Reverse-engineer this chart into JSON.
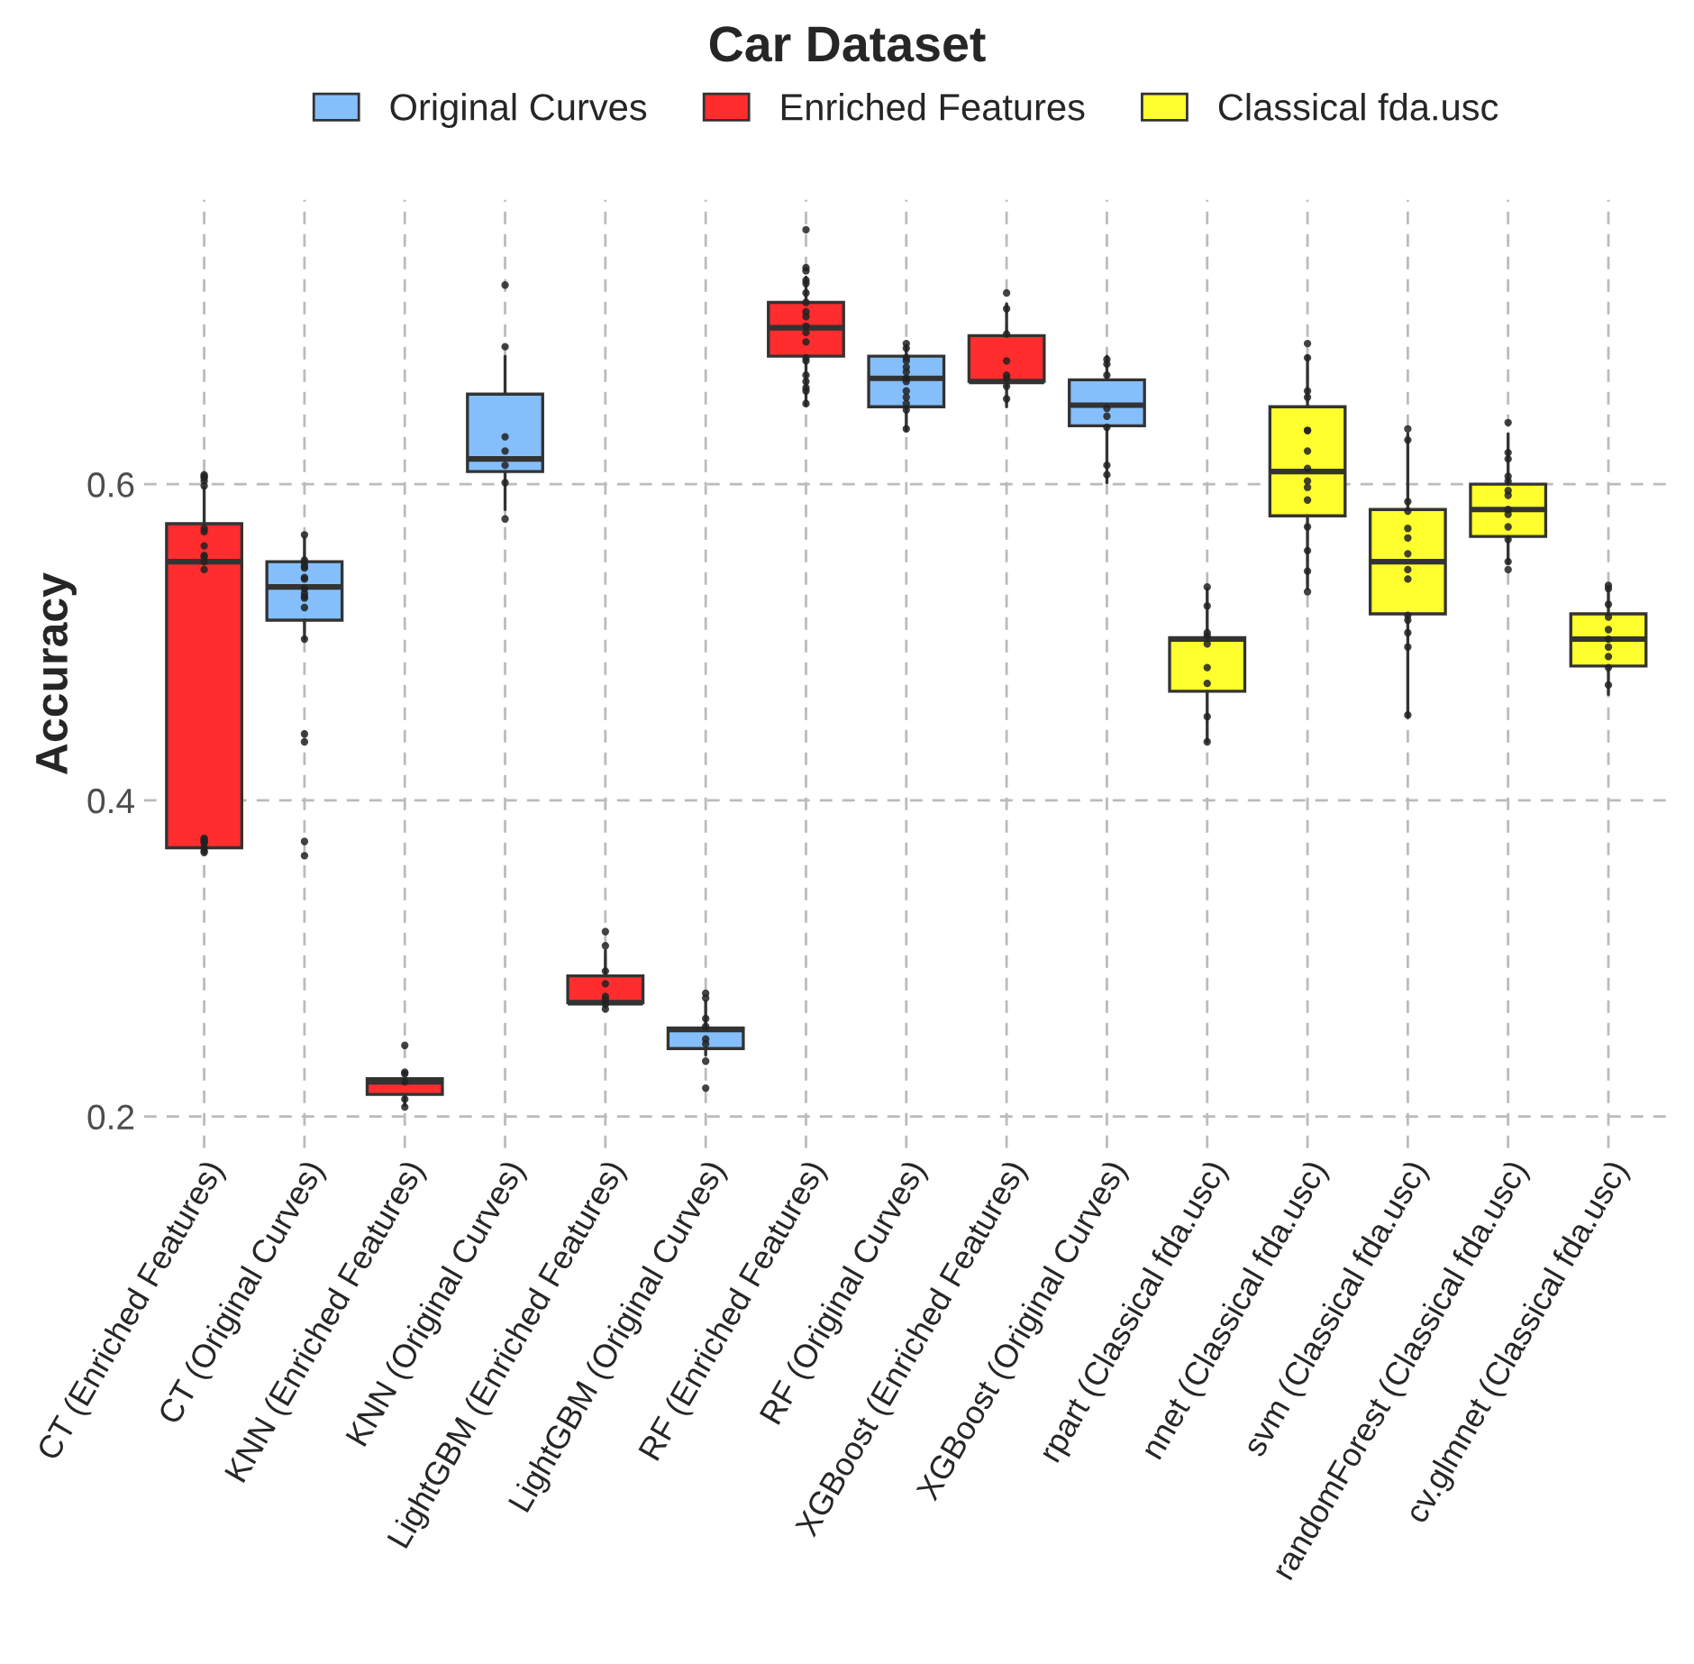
{
  "chart_data": {
    "type": "box",
    "title": "Car Dataset",
    "ylabel": "Accuracy",
    "categories": [
      "CT (Enriched Features)",
      "CT (Original Curves)",
      "KNN (Enriched Features)",
      "KNN (Original Curves)",
      "LightGBM (Enriched Features)",
      "LightGBM (Original Curves)",
      "RF (Enriched Features)",
      "RF (Original Curves)",
      "XGBoost (Enriched Features)",
      "XGBoost (Original Curves)",
      "rpart (Classical fda.usc)",
      "nnet (Classical fda.usc)",
      "svm (Classical fda.usc)",
      "randomForest (Classical fda.usc)",
      "cv.glmnet (Classical fda.usc)"
    ],
    "ylim": [
      0.18,
      0.78
    ],
    "yticks": [
      0.2,
      0.4,
      0.6
    ],
    "grid": true,
    "legend": "top",
    "series": [
      {
        "name": "Original Curves",
        "color": "#85bffb",
        "boxes": [
          null,
          {
            "low": 0.502,
            "q1": 0.514,
            "median": 0.535,
            "q3": 0.551,
            "high": 0.566
          },
          null,
          {
            "low": 0.584,
            "q1": 0.608,
            "median": 0.616,
            "q3": 0.657,
            "high": 0.681
          },
          null,
          {
            "low": 0.239,
            "q1": 0.243,
            "median": 0.255,
            "q3": 0.256,
            "high": 0.273
          },
          null,
          {
            "low": 0.634,
            "q1": 0.649,
            "median": 0.667,
            "q3": 0.681,
            "high": 0.688
          },
          null,
          {
            "low": 0.601,
            "q1": 0.637,
            "median": 0.65,
            "q3": 0.666,
            "high": 0.681
          },
          null,
          null,
          null,
          null,
          null
        ]
      },
      {
        "name": "Enriched Features",
        "color": "#ff2d2d",
        "boxes": [
          {
            "low": 0.37,
            "q1": 0.37,
            "median": 0.551,
            "q3": 0.575,
            "high": 0.598
          },
          null,
          {
            "low": 0.207,
            "q1": 0.214,
            "median": 0.222,
            "q3": 0.224,
            "high": 0.224
          },
          null,
          {
            "low": 0.272,
            "q1": 0.272,
            "median": 0.272,
            "q3": 0.289,
            "high": 0.305
          },
          null,
          {
            "low": 0.65,
            "q1": 0.681,
            "median": 0.699,
            "q3": 0.715,
            "high": 0.731
          },
          null,
          {
            "low": 0.649,
            "q1": 0.665,
            "median": 0.665,
            "q3": 0.694,
            "high": 0.714
          },
          null,
          null,
          null,
          null,
          null,
          null
        ]
      },
      {
        "name": "Classical fda.usc",
        "color": "#ffff2e",
        "boxes": [
          null,
          null,
          null,
          null,
          null,
          null,
          null,
          null,
          null,
          null,
          {
            "low": 0.437,
            "q1": 0.469,
            "median": 0.502,
            "q3": 0.503,
            "high": 0.534
          },
          {
            "low": 0.534,
            "q1": 0.58,
            "median": 0.608,
            "q3": 0.649,
            "high": 0.681
          },
          {
            "low": 0.453,
            "q1": 0.518,
            "median": 0.551,
            "q3": 0.584,
            "high": 0.632
          },
          {
            "low": 0.55,
            "q1": 0.567,
            "median": 0.584,
            "q3": 0.6,
            "high": 0.632
          },
          {
            "low": 0.467,
            "q1": 0.485,
            "median": 0.502,
            "q3": 0.518,
            "high": 0.534
          }
        ]
      },
      {
        "type": "scatter",
        "color": "#222222",
        "marker": "circle",
        "x": [
          "CT (Enriched Features)",
          "CT (Enriched Features)",
          "CT (Enriched Features)",
          "CT (Enriched Features)",
          "CT (Enriched Features)",
          "CT (Enriched Features)",
          "CT (Enriched Features)",
          "CT (Enriched Features)",
          "CT (Enriched Features)",
          "CT (Enriched Features)",
          "CT (Enriched Features)",
          "CT (Enriched Features)",
          "CT (Enriched Features)",
          "CT (Enriched Features)",
          "CT (Enriched Features)",
          "CT (Enriched Features)",
          "CT (Enriched Features)",
          "CT (Enriched Features)",
          "CT (Enriched Features)",
          "CT (Original Curves)",
          "CT (Original Curves)",
          "CT (Original Curves)",
          "CT (Original Curves)",
          "CT (Original Curves)",
          "CT (Original Curves)",
          "CT (Original Curves)",
          "CT (Original Curves)",
          "CT (Original Curves)",
          "CT (Original Curves)",
          "CT (Original Curves)",
          "CT (Original Curves)",
          "CT (Original Curves)",
          "CT (Original Curves)",
          "CT (Original Curves)",
          "CT (Original Curves)",
          "CT (Original Curves)",
          "KNN (Enriched Features)",
          "KNN (Enriched Features)",
          "KNN (Enriched Features)",
          "KNN (Enriched Features)",
          "KNN (Enriched Features)",
          "KNN (Enriched Features)",
          "KNN (Original Curves)",
          "KNN (Original Curves)",
          "KNN (Original Curves)",
          "KNN (Original Curves)",
          "KNN (Original Curves)",
          "KNN (Original Curves)",
          "KNN (Original Curves)",
          "LightGBM (Enriched Features)",
          "LightGBM (Enriched Features)",
          "LightGBM (Enriched Features)",
          "LightGBM (Enriched Features)",
          "LightGBM (Enriched Features)",
          "LightGBM (Enriched Features)",
          "LightGBM (Enriched Features)",
          "LightGBM (Enriched Features)",
          "LightGBM (Original Curves)",
          "LightGBM (Original Curves)",
          "LightGBM (Original Curves)",
          "LightGBM (Original Curves)",
          "LightGBM (Original Curves)",
          "LightGBM (Original Curves)",
          "LightGBM (Original Curves)",
          "LightGBM (Original Curves)",
          "RF (Enriched Features)",
          "RF (Enriched Features)",
          "RF (Enriched Features)",
          "RF (Enriched Features)",
          "RF (Enriched Features)",
          "RF (Enriched Features)",
          "RF (Enriched Features)",
          "RF (Enriched Features)",
          "RF (Enriched Features)",
          "RF (Enriched Features)",
          "RF (Enriched Features)",
          "RF (Enriched Features)",
          "RF (Enriched Features)",
          "RF (Enriched Features)",
          "RF (Enriched Features)",
          "RF (Enriched Features)",
          "RF (Enriched Features)",
          "RF (Enriched Features)",
          "RF (Enriched Features)",
          "RF (Original Curves)",
          "RF (Original Curves)",
          "RF (Original Curves)",
          "RF (Original Curves)",
          "RF (Original Curves)",
          "RF (Original Curves)",
          "RF (Original Curves)",
          "RF (Original Curves)",
          "RF (Original Curves)",
          "RF (Original Curves)",
          "RF (Original Curves)",
          "RF (Original Curves)",
          "RF (Original Curves)",
          "XGBoost (Enriched Features)",
          "XGBoost (Enriched Features)",
          "XGBoost (Enriched Features)",
          "XGBoost (Enriched Features)",
          "XGBoost (Enriched Features)",
          "XGBoost (Enriched Features)",
          "XGBoost (Enriched Features)",
          "XGBoost (Enriched Features)",
          "XGBoost (Original Curves)",
          "XGBoost (Original Curves)",
          "XGBoost (Original Curves)",
          "XGBoost (Original Curves)",
          "XGBoost (Original Curves)",
          "XGBoost (Original Curves)",
          "XGBoost (Original Curves)",
          "XGBoost (Original Curves)",
          "rpart (Classical fda.usc)",
          "rpart (Classical fda.usc)",
          "rpart (Classical fda.usc)",
          "rpart (Classical fda.usc)",
          "rpart (Classical fda.usc)",
          "rpart (Classical fda.usc)",
          "rpart (Classical fda.usc)",
          "rpart (Classical fda.usc)",
          "rpart (Classical fda.usc)",
          "nnet (Classical fda.usc)",
          "nnet (Classical fda.usc)",
          "nnet (Classical fda.usc)",
          "nnet (Classical fda.usc)",
          "nnet (Classical fda.usc)",
          "nnet (Classical fda.usc)",
          "nnet (Classical fda.usc)",
          "nnet (Classical fda.usc)",
          "nnet (Classical fda.usc)",
          "nnet (Classical fda.usc)",
          "nnet (Classical fda.usc)",
          "nnet (Classical fda.usc)",
          "nnet (Classical fda.usc)",
          "nnet (Classical fda.usc)",
          "nnet (Classical fda.usc)",
          "svm (Classical fda.usc)",
          "svm (Classical fda.usc)",
          "svm (Classical fda.usc)",
          "svm (Classical fda.usc)",
          "svm (Classical fda.usc)",
          "svm (Classical fda.usc)",
          "svm (Classical fda.usc)",
          "svm (Classical fda.usc)",
          "svm (Classical fda.usc)",
          "svm (Classical fda.usc)",
          "svm (Classical fda.usc)",
          "svm (Classical fda.usc)",
          "svm (Classical fda.usc)",
          "svm (Classical fda.usc)",
          "randomForest (Classical fda.usc)",
          "randomForest (Classical fda.usc)",
          "randomForest (Classical fda.usc)",
          "randomForest (Classical fda.usc)",
          "randomForest (Classical fda.usc)",
          "randomForest (Classical fda.usc)",
          "randomForest (Classical fda.usc)",
          "randomForest (Classical fda.usc)",
          "randomForest (Classical fda.usc)",
          "randomForest (Classical fda.usc)",
          "randomForest (Classical fda.usc)",
          "randomForest (Classical fda.usc)",
          "randomForest (Classical fda.usc)",
          "cv.glmnet (Classical fda.usc)",
          "cv.glmnet (Classical fda.usc)",
          "cv.glmnet (Classical fda.usc)",
          "cv.glmnet (Classical fda.usc)",
          "cv.glmnet (Classical fda.usc)",
          "cv.glmnet (Classical fda.usc)",
          "cv.glmnet (Classical fda.usc)",
          "cv.glmnet (Classical fda.usc)",
          "cv.glmnet (Classical fda.usc)",
          "cv.glmnet (Classical fda.usc)"
        ],
        "values": [
          0.605,
          0.604,
          0.606,
          0.602,
          0.599,
          0.572,
          0.57,
          0.561,
          0.555,
          0.554,
          0.551,
          0.546,
          0.376,
          0.375,
          0.374,
          0.373,
          0.37,
          0.368,
          0.367,
          0.568,
          0.552,
          0.55,
          0.548,
          0.547,
          0.541,
          0.54,
          0.534,
          0.531,
          0.529,
          0.528,
          0.522,
          0.502,
          0.442,
          0.437,
          0.374,
          0.365,
          0.245,
          0.228,
          0.227,
          0.222,
          0.211,
          0.206,
          0.726,
          0.687,
          0.63,
          0.621,
          0.612,
          0.601,
          0.578,
          0.317,
          0.308,
          0.292,
          0.284,
          0.276,
          0.274,
          0.271,
          0.268,
          0.278,
          0.275,
          0.262,
          0.257,
          0.249,
          0.246,
          0.235,
          0.218,
          0.761,
          0.737,
          0.735,
          0.729,
          0.727,
          0.721,
          0.715,
          0.709,
          0.706,
          0.7,
          0.696,
          0.69,
          0.68,
          0.678,
          0.669,
          0.665,
          0.661,
          0.659,
          0.651,
          0.689,
          0.686,
          0.68,
          0.678,
          0.674,
          0.671,
          0.667,
          0.665,
          0.659,
          0.655,
          0.651,
          0.647,
          0.635,
          0.721,
          0.711,
          0.695,
          0.678,
          0.669,
          0.667,
          0.662,
          0.654,
          0.679,
          0.676,
          0.669,
          0.648,
          0.643,
          0.636,
          0.612,
          0.606,
          0.535,
          0.523,
          0.506,
          0.504,
          0.499,
          0.484,
          0.474,
          0.453,
          0.437,
          0.689,
          0.68,
          0.659,
          0.655,
          0.634,
          0.634,
          0.621,
          0.61,
          0.602,
          0.598,
          0.59,
          0.573,
          0.558,
          0.545,
          0.532,
          0.635,
          0.628,
          0.589,
          0.583,
          0.572,
          0.566,
          0.556,
          0.546,
          0.54,
          0.517,
          0.514,
          0.506,
          0.497,
          0.454,
          0.639,
          0.62,
          0.616,
          0.605,
          0.602,
          0.596,
          0.593,
          0.584,
          0.581,
          0.573,
          0.565,
          0.551,
          0.546,
          0.536,
          0.534,
          0.524,
          0.516,
          0.508,
          0.502,
          0.497,
          0.491,
          0.484,
          0.473
        ]
      }
    ]
  }
}
